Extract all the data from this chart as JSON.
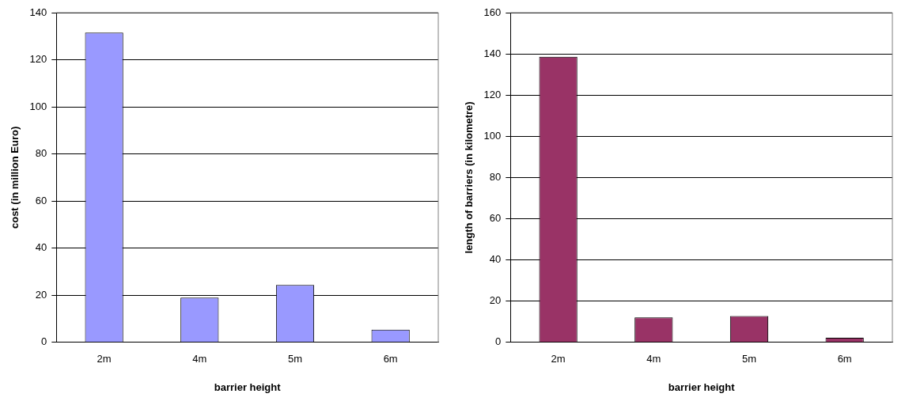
{
  "chart_data": [
    {
      "type": "bar",
      "xlabel": "barrier height",
      "ylabel": "cost (in million Euro)",
      "categories": [
        "2m",
        "4m",
        "5m",
        "6m"
      ],
      "series": [
        {
          "color": "#9999ff",
          "values": [
            131.5,
            19,
            24.4,
            5.4
          ]
        }
      ],
      "ylim": [
        0,
        140
      ],
      "yticks": [
        0,
        20,
        40,
        60,
        80,
        100,
        120,
        140
      ],
      "grid": "y",
      "legend": false
    },
    {
      "type": "bar",
      "xlabel": "barrier height",
      "ylabel": "length of barriers (in kilometre)",
      "categories": [
        "2m",
        "4m",
        "5m",
        "6m"
      ],
      "series": [
        {
          "color": "#993366",
          "values": [
            138.6,
            12.1,
            12.8,
            2.2
          ]
        }
      ],
      "ylim": [
        0,
        160
      ],
      "yticks": [
        0,
        20,
        40,
        60,
        80,
        100,
        120,
        140,
        160
      ],
      "grid": "y",
      "legend": false
    }
  ]
}
